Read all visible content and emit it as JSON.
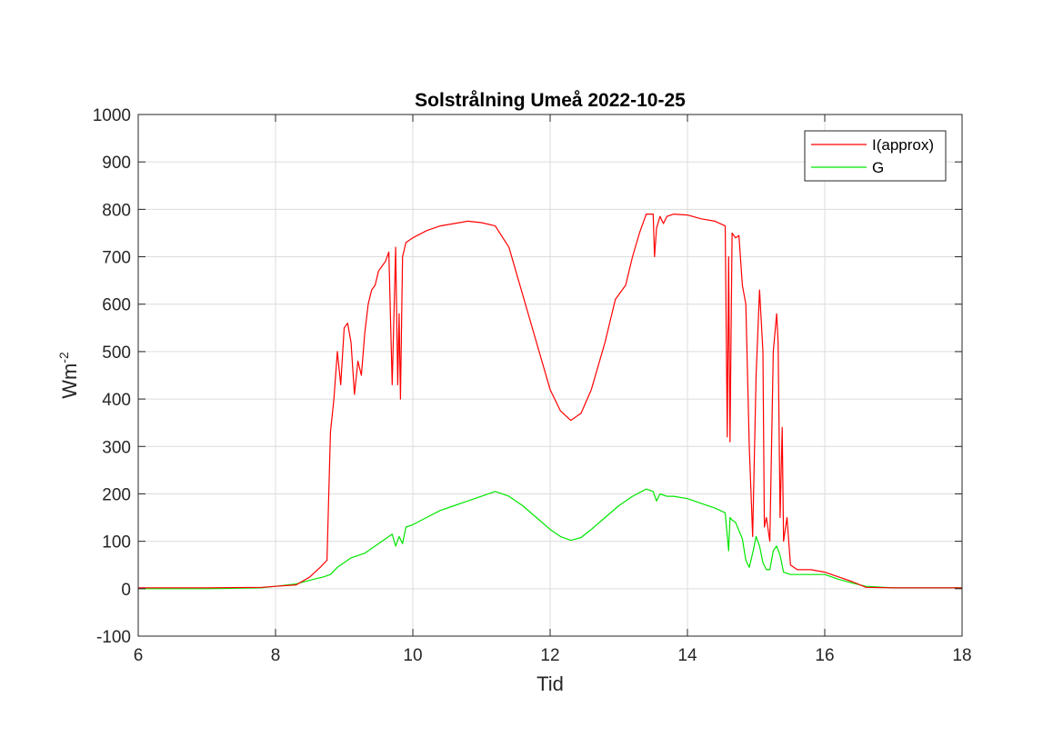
{
  "chart_data": {
    "type": "line",
    "title": "Solstrålning Umeå 2022-10-25",
    "xlabel": "Tid",
    "ylabel": "Wm",
    "ylabel_sup": "-2",
    "xlim": [
      6,
      18
    ],
    "ylim": [
      -100,
      1000
    ],
    "xticks": [
      6,
      8,
      10,
      12,
      14,
      16,
      18
    ],
    "yticks": [
      -100,
      0,
      100,
      200,
      300,
      400,
      500,
      600,
      700,
      800,
      900,
      1000
    ],
    "grid": true,
    "legend_placement": "top-right",
    "series": [
      {
        "name": "I(approx)",
        "color": "#ff0000",
        "x": [
          6.0,
          7.0,
          7.8,
          8.0,
          8.3,
          8.5,
          8.65,
          8.75,
          8.8,
          8.85,
          8.9,
          8.95,
          9.0,
          9.05,
          9.1,
          9.15,
          9.2,
          9.25,
          9.3,
          9.35,
          9.4,
          9.45,
          9.5,
          9.55,
          9.6,
          9.65,
          9.7,
          9.75,
          9.78,
          9.8,
          9.82,
          9.85,
          9.9,
          10.0,
          10.2,
          10.4,
          10.6,
          10.8,
          11.0,
          11.2,
          11.4,
          11.6,
          11.8,
          12.0,
          12.15,
          12.3,
          12.45,
          12.6,
          12.8,
          12.95,
          13.1,
          13.2,
          13.3,
          13.4,
          13.5,
          13.52,
          13.55,
          13.6,
          13.65,
          13.7,
          13.8,
          14.0,
          14.2,
          14.4,
          14.55,
          14.58,
          14.6,
          14.62,
          14.65,
          14.7,
          14.75,
          14.8,
          14.85,
          14.9,
          14.95,
          15.0,
          15.05,
          15.1,
          15.12,
          15.15,
          15.2,
          15.25,
          15.3,
          15.32,
          15.35,
          15.38,
          15.4,
          15.45,
          15.5,
          15.6,
          15.8,
          16.0,
          16.2,
          16.4,
          16.6,
          17.0,
          18.0
        ],
        "y": [
          2,
          2,
          3,
          5,
          8,
          25,
          45,
          60,
          330,
          400,
          500,
          430,
          550,
          560,
          520,
          410,
          480,
          450,
          540,
          600,
          630,
          640,
          670,
          680,
          690,
          710,
          430,
          720,
          430,
          580,
          400,
          700,
          730,
          740,
          755,
          765,
          770,
          775,
          772,
          765,
          720,
          620,
          520,
          420,
          375,
          355,
          370,
          420,
          520,
          610,
          640,
          700,
          750,
          790,
          790,
          700,
          760,
          785,
          770,
          785,
          790,
          788,
          780,
          775,
          765,
          320,
          700,
          310,
          750,
          740,
          745,
          640,
          600,
          300,
          110,
          450,
          630,
          500,
          130,
          150,
          100,
          500,
          580,
          520,
          150,
          340,
          100,
          150,
          50,
          40,
          40,
          35,
          25,
          15,
          3,
          2,
          2
        ]
      },
      {
        "name": "G",
        "color": "#00e600",
        "x": [
          6.0,
          7.0,
          7.8,
          8.0,
          8.3,
          8.5,
          8.7,
          8.8,
          8.9,
          9.0,
          9.1,
          9.2,
          9.3,
          9.4,
          9.5,
          9.6,
          9.65,
          9.7,
          9.75,
          9.8,
          9.85,
          9.9,
          10.0,
          10.2,
          10.4,
          10.6,
          10.8,
          11.0,
          11.2,
          11.4,
          11.6,
          11.8,
          12.0,
          12.15,
          12.3,
          12.45,
          12.6,
          12.8,
          13.0,
          13.2,
          13.4,
          13.5,
          13.55,
          13.6,
          13.7,
          13.8,
          14.0,
          14.2,
          14.4,
          14.55,
          14.6,
          14.62,
          14.65,
          14.7,
          14.8,
          14.85,
          14.9,
          14.95,
          15.0,
          15.05,
          15.1,
          15.15,
          15.2,
          15.25,
          15.3,
          15.35,
          15.4,
          15.5,
          15.6,
          15.8,
          16.0,
          16.2,
          16.4,
          16.6,
          17.0,
          18.0
        ],
        "y": [
          0,
          0,
          2,
          5,
          10,
          18,
          25,
          30,
          45,
          55,
          65,
          70,
          75,
          85,
          95,
          105,
          110,
          115,
          90,
          110,
          95,
          130,
          135,
          150,
          165,
          175,
          185,
          195,
          205,
          195,
          175,
          150,
          125,
          110,
          102,
          108,
          125,
          150,
          175,
          195,
          210,
          205,
          185,
          200,
          195,
          195,
          190,
          180,
          170,
          160,
          80,
          150,
          145,
          140,
          105,
          60,
          45,
          75,
          110,
          90,
          55,
          40,
          40,
          80,
          90,
          70,
          35,
          30,
          30,
          30,
          30,
          20,
          12,
          5,
          2,
          2
        ]
      }
    ]
  }
}
